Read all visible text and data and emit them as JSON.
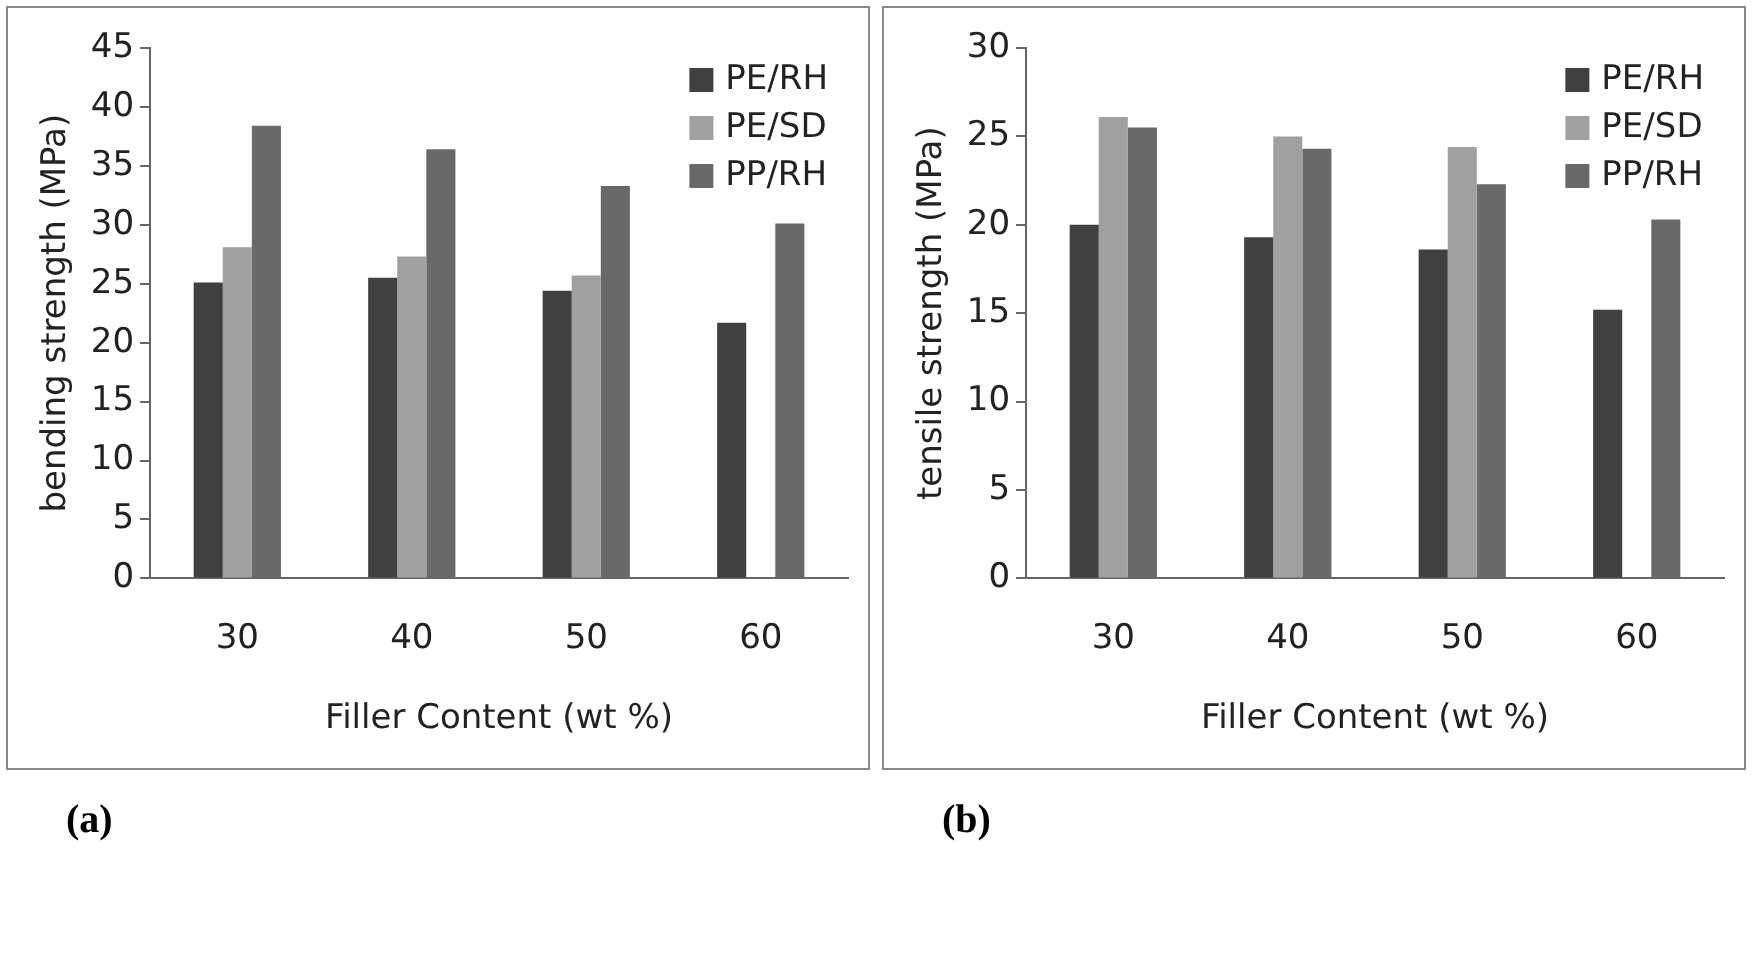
{
  "chart_data": [
    {
      "type": "bar",
      "ylabel": "bending strength (MPa)",
      "xlabel": "Filler Content (wt %)",
      "categories": [
        "30",
        "40",
        "50",
        "60"
      ],
      "series": [
        {
          "name": "PE/RH",
          "color": "#404040",
          "values": [
            25.1,
            25.5,
            24.4,
            21.7
          ]
        },
        {
          "name": "PE/SD",
          "color": "#a0a0a0",
          "values": [
            28.1,
            27.3,
            25.7,
            null
          ]
        },
        {
          "name": "PP/RH",
          "color": "#696969",
          "values": [
            38.4,
            36.4,
            33.3,
            30.1
          ]
        }
      ],
      "ylim": [
        0,
        45
      ],
      "yticks": [
        0,
        5,
        10,
        15,
        20,
        25,
        30,
        35,
        40,
        45
      ],
      "grid": false,
      "legend": "top right",
      "annotations": [
        "(a)"
      ]
    },
    {
      "type": "bar",
      "ylabel": "tensile strength (MPa)",
      "xlabel": "Filler Content (wt %)",
      "categories": [
        "30",
        "40",
        "50",
        "60"
      ],
      "series": [
        {
          "name": "PE/RH",
          "color": "#404040",
          "values": [
            20.0,
            19.3,
            18.6,
            15.2
          ]
        },
        {
          "name": "PE/SD",
          "color": "#a0a0a0",
          "values": [
            26.1,
            25.0,
            24.4,
            null
          ]
        },
        {
          "name": "PP/RH",
          "color": "#696969",
          "values": [
            25.5,
            24.3,
            22.3,
            20.3
          ]
        }
      ],
      "ylim": [
        0,
        30
      ],
      "yticks": [
        0,
        5,
        10,
        15,
        20,
        25,
        30
      ],
      "grid": false,
      "legend": "top right",
      "annotations": [
        "(b)"
      ]
    }
  ]
}
